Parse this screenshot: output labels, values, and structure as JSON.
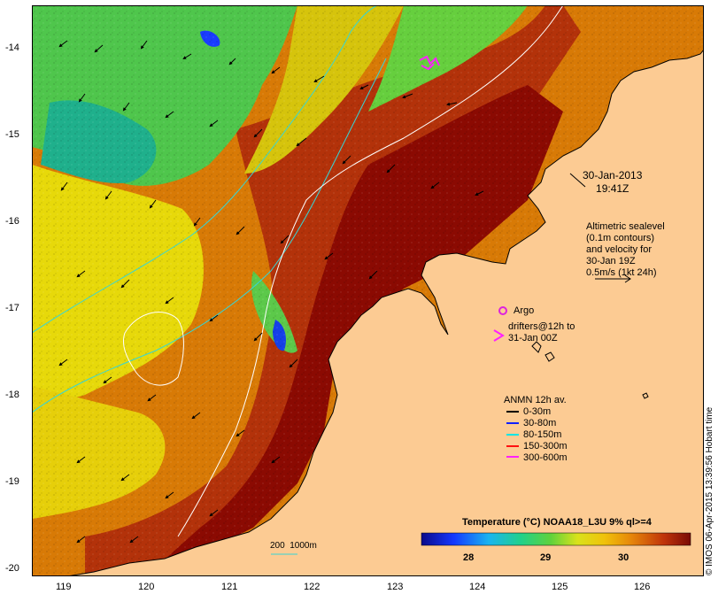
{
  "map": {
    "title_date": "30-Jan-2013",
    "title_time": "19:41Z",
    "altimetry_note": [
      "Altimetric sealevel",
      "(0.1m contours)",
      "and velocity for",
      "30-Jan 19Z",
      "0.5m/s (1kt 24h)"
    ],
    "argo_label": "Argo",
    "drifters_label": [
      "drifters@12h to",
      "31-Jan 00Z"
    ],
    "bathymetry_label": "200  1000m",
    "credit": "© IMOS 06-Apr-2015 13:39:56 Hobart time",
    "colors": {
      "land": "#fccb93",
      "deep_red": "#8b0a02",
      "orange": "#d87a06",
      "yellow": "#e7d90a",
      "green": "#4fc64c",
      "cyan_green": "#1fb08c",
      "bathymetry_line": "#36d6d6",
      "contour": "#ffffff",
      "argo": "#dd22dd"
    }
  },
  "axes": {
    "x_ticks": [
      "119",
      "120",
      "121",
      "122",
      "123",
      "124",
      "125",
      "126"
    ],
    "y_ticks": [
      "-14",
      "-15",
      "-16",
      "-17",
      "-18",
      "-19",
      "-20"
    ]
  },
  "legend": {
    "title": "ANMN 12h av.",
    "items": [
      {
        "label": "0-30m",
        "color": "#000000"
      },
      {
        "label": "30-80m",
        "color": "#1020ff"
      },
      {
        "label": "80-150m",
        "color": "#00e5e5"
      },
      {
        "label": "150-300m",
        "color": "#ff1010"
      },
      {
        "label": "300-600m",
        "color": "#ff20ff"
      }
    ]
  },
  "colorbar": {
    "title": "Temperature (°C) NOAA18_L3U 9% ql>=4",
    "ticks": [
      "28",
      "29",
      "30"
    ]
  }
}
